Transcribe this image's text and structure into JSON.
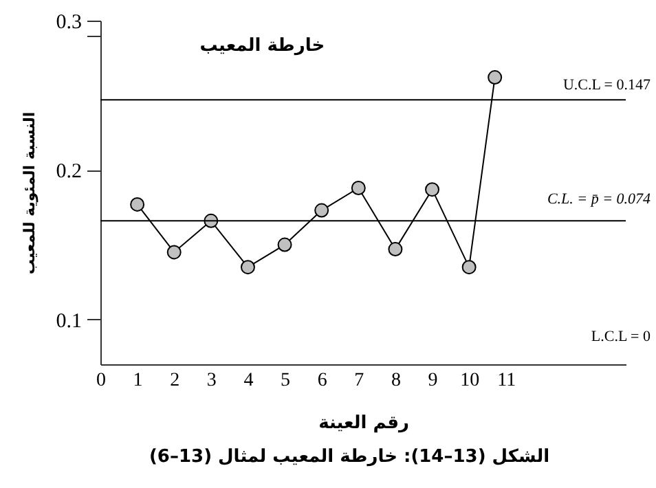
{
  "chart_data": {
    "type": "line",
    "title": "خارطة المعيب",
    "xlabel": "رقم العينة",
    "ylabel": "النسبة المئوية للمعيب",
    "x": [
      1,
      2,
      3,
      4,
      5,
      6,
      7,
      8,
      9,
      10,
      10.7
    ],
    "series": [
      {
        "color": "#000000",
        "values": [
          0.177,
          0.145,
          0.166,
          0.135,
          0.15,
          0.173,
          0.188,
          0.147,
          0.187,
          0.135,
          0.262
        ]
      }
    ],
    "xlim": [
      0,
      14.25
    ],
    "xticks": [
      0,
      1,
      2,
      3,
      4,
      5,
      6,
      7,
      8,
      9,
      10,
      11
    ],
    "ylim": [
      0.07,
      0.3
    ],
    "yticks": [
      0.1,
      0.2,
      0.3,
      {
        "value": 0.29,
        "label": null
      }
    ],
    "ref_lines": [
      {
        "axis": "y",
        "value": 0.247,
        "color": "#000000"
      },
      {
        "axis": "y",
        "value": 0.166,
        "color": "#000000"
      }
    ],
    "annotations": [
      "U.C.L = 0.147",
      "C.L. = p̄ = 0.074",
      "L.C.L = 0",
      "الشكل (13–14): خارطة المعيب لمثال (13–6)"
    ],
    "marker": "circle",
    "grid": false
  }
}
